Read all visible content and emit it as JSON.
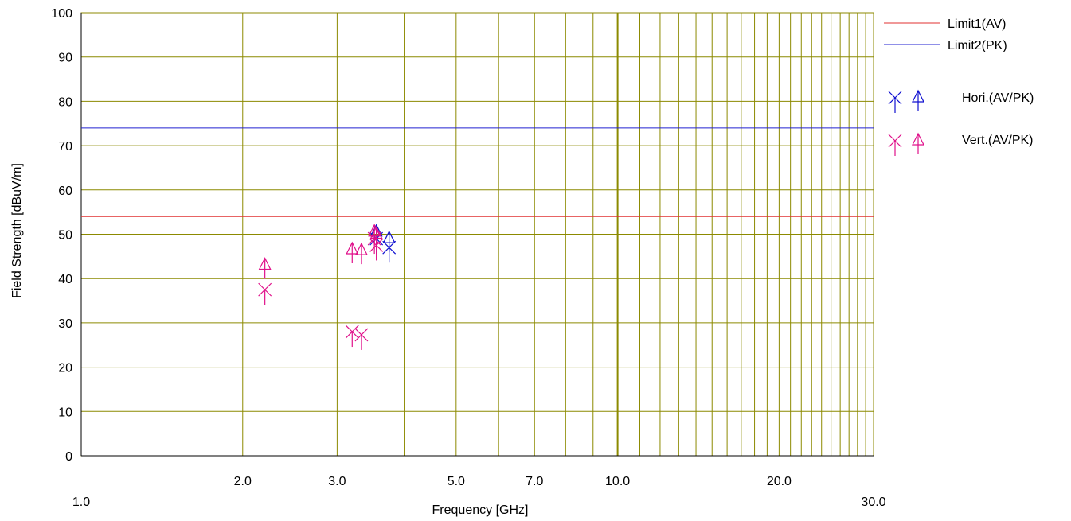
{
  "chart_data": {
    "type": "scatter",
    "xlabel": "Frequency [GHz]",
    "ylabel": "Field Strength [dBuV/m]",
    "x_scale": "log",
    "xlim": [
      1.0,
      30.0
    ],
    "ylim": [
      0,
      100
    ],
    "grid": true,
    "legend_position": "right",
    "x_tick_labels": [
      {
        "value": 1.0,
        "label": "1.0"
      },
      {
        "value": 2.0,
        "label": "2.0"
      },
      {
        "value": 3.0,
        "label": "3.0"
      },
      {
        "value": 5.0,
        "label": "5.0"
      },
      {
        "value": 7.0,
        "label": "7.0"
      },
      {
        "value": 10.0,
        "label": "10.0"
      },
      {
        "value": 20.0,
        "label": "20.0"
      },
      {
        "value": 30.0,
        "label": "30.0"
      }
    ],
    "y_ticks": [
      0,
      10,
      20,
      30,
      40,
      50,
      60,
      70,
      80,
      90,
      100
    ],
    "limits": [
      {
        "name": "Limit1(AV)",
        "value": 54,
        "color": "#e03030"
      },
      {
        "name": "Limit2(PK)",
        "value": 74,
        "color": "#2020d0"
      }
    ],
    "series": [
      {
        "name": "Hori.(AV/PK)",
        "color": "#1010d0",
        "points": [
          {
            "x": 3.55,
            "av": 49.0,
            "pk": 50.5
          },
          {
            "x": 3.75,
            "av": 47.0,
            "pk": 49.0
          }
        ]
      },
      {
        "name": "Vert.(AV/PK)",
        "color": "#e0108a",
        "points": [
          {
            "x": 2.2,
            "av": 37.5,
            "pk": 43.0
          },
          {
            "x": 3.2,
            "av": 28.0,
            "pk": 46.5
          },
          {
            "x": 3.33,
            "av": 27.3,
            "pk": 46.3
          },
          {
            "x": 3.52,
            "av": 49.0,
            "pk": 50.5
          },
          {
            "x": 3.55,
            "av": 47.5,
            "pk": 50.0
          }
        ]
      }
    ]
  },
  "colors": {
    "grid": "#8c8a00",
    "axis": "#000000"
  }
}
